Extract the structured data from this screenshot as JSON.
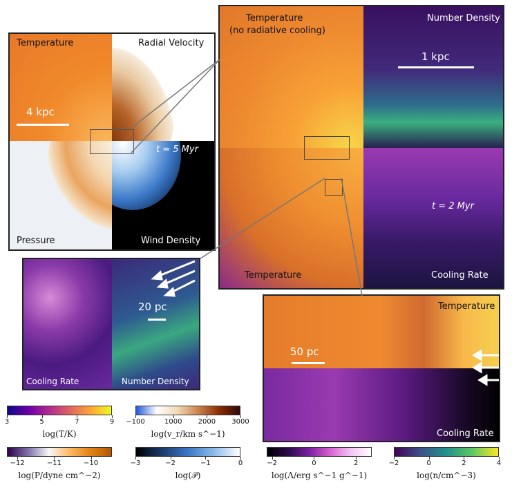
{
  "panelA": {
    "temperature": "Temperature",
    "radial_velocity": "Radial Velocity",
    "pressure": "Pressure",
    "wind_density": "Wind Density",
    "time": "t = 5 Myr",
    "scale": "4 kpc"
  },
  "panelB": {
    "temperature_top": "Temperature",
    "temperature_top_note": "(no radiative cooling)",
    "number_density": "Number Density",
    "scale": "1 kpc",
    "time": "t = 2 Myr",
    "temperature_bottom": "Temperature",
    "cooling_rate": "Cooling Rate"
  },
  "panelC": {
    "cooling_rate": "Cooling Rate",
    "number_density": "Number Density",
    "scale": "20 pc"
  },
  "panelD": {
    "temperature": "Temperature",
    "scale": "50 pc",
    "cooling_rate": "Cooling Rate"
  },
  "colorbars": [
    {
      "id": "temperature",
      "ticks": [
        "3",
        "5",
        "7",
        "9"
      ],
      "label": "log(T/K)"
    },
    {
      "id": "velocity",
      "ticks": [
        "−100",
        "1000",
        "2000",
        "3000"
      ],
      "label": "log(v_r/km s^−1)"
    },
    {
      "id": "pressure",
      "ticks": [
        "−12",
        "−11",
        "−10"
      ],
      "label": "log(P/dyne cm^−2)"
    },
    {
      "id": "wind",
      "ticks": [
        "−3",
        "−2",
        "−1",
        "0"
      ],
      "label": "log(𝒫)"
    },
    {
      "id": "cooling",
      "ticks": [
        "−2",
        "0",
        "2"
      ],
      "label": "log(Λ/erg s^−1 g^−1)"
    },
    {
      "id": "density",
      "ticks": [
        "−2",
        "0",
        "2",
        "4"
      ],
      "label": "log(n/cm^−3)"
    }
  ],
  "colors": {
    "temperature": [
      "#0d0887",
      "#6a00a8",
      "#b12a90",
      "#e16462",
      "#fca636",
      "#f0f921"
    ],
    "velocity": [
      "#2457d6",
      "#ffffff",
      "#f0d9b5",
      "#c9844d",
      "#8c2d04",
      "#2a0a0a"
    ],
    "pressure": [
      "#2d004b",
      "#8073ac",
      "#f7f7f7",
      "#fdb863",
      "#e08214",
      "#b35806"
    ],
    "wind": [
      "#000000",
      "#1a3a6a",
      "#3b78c8",
      "#8dbbe8",
      "#ffffff"
    ],
    "cooling": [
      "#000000",
      "#2b0a4a",
      "#7a1fa2",
      "#d55fd0",
      "#f4c2f2",
      "#ffffff"
    ],
    "density": [
      "#440154",
      "#3b528b",
      "#21918c",
      "#5ec962",
      "#fde725"
    ]
  }
}
